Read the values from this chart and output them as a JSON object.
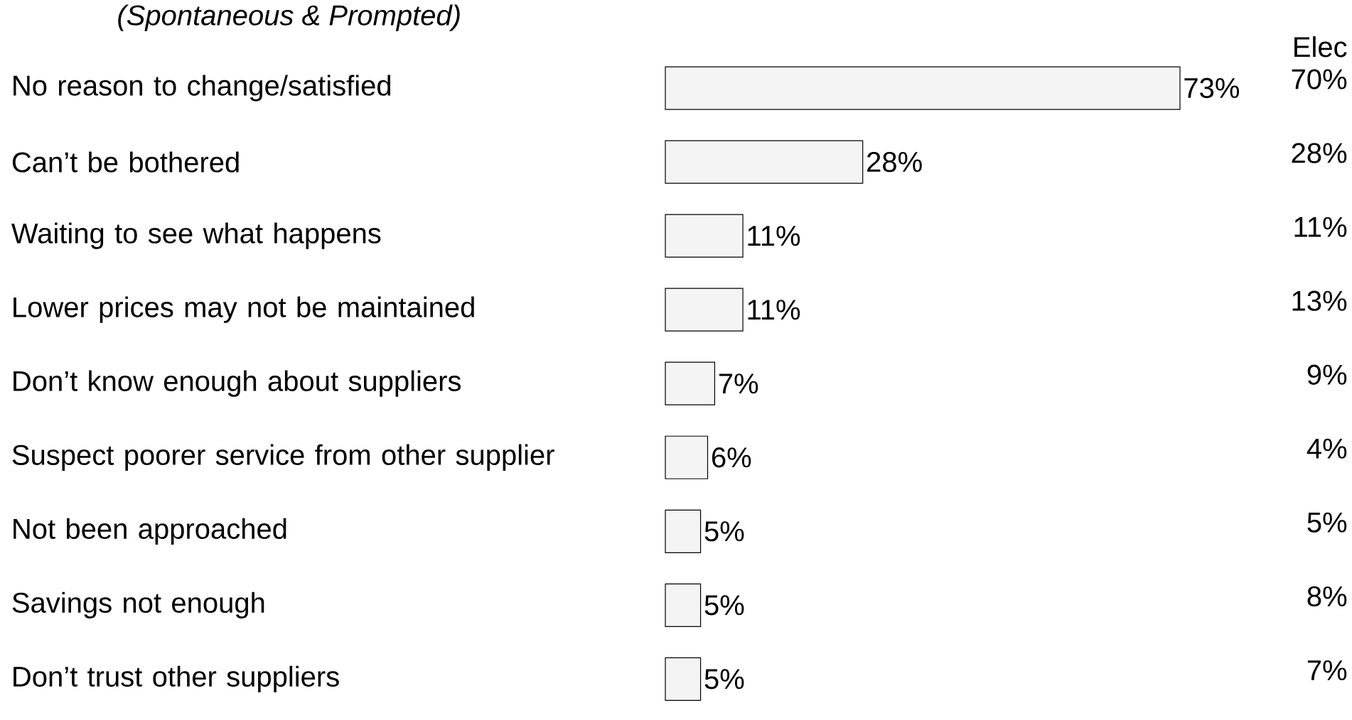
{
  "chart_data": {
    "type": "bar",
    "orientation": "horizontal",
    "subtitle": "(Spontaneous & Prompted)",
    "categories": [
      "No reason to change/satisfied",
      "Can’t be bothered",
      "Waiting to see what happens",
      "Lower prices may not be maintained",
      "Don’t know enough about suppliers",
      "Suspect poorer service from other supplier",
      "Not been approached",
      "Savings not enough",
      "Don’t trust other suppliers"
    ],
    "values": [
      73,
      28,
      11,
      11,
      7,
      6,
      5,
      5,
      5
    ],
    "value_labels": [
      "73%",
      "28%",
      "11%",
      "11%",
      "7%",
      "6%",
      "5%",
      "5%",
      "5%"
    ],
    "color": "#f4f4f4",
    "tick_labels": "y",
    "annotations": [
      "Elec",
      "70%",
      "28%",
      "11%",
      "13%",
      "9%",
      "4%",
      "5%",
      "8%",
      "7%"
    ]
  }
}
